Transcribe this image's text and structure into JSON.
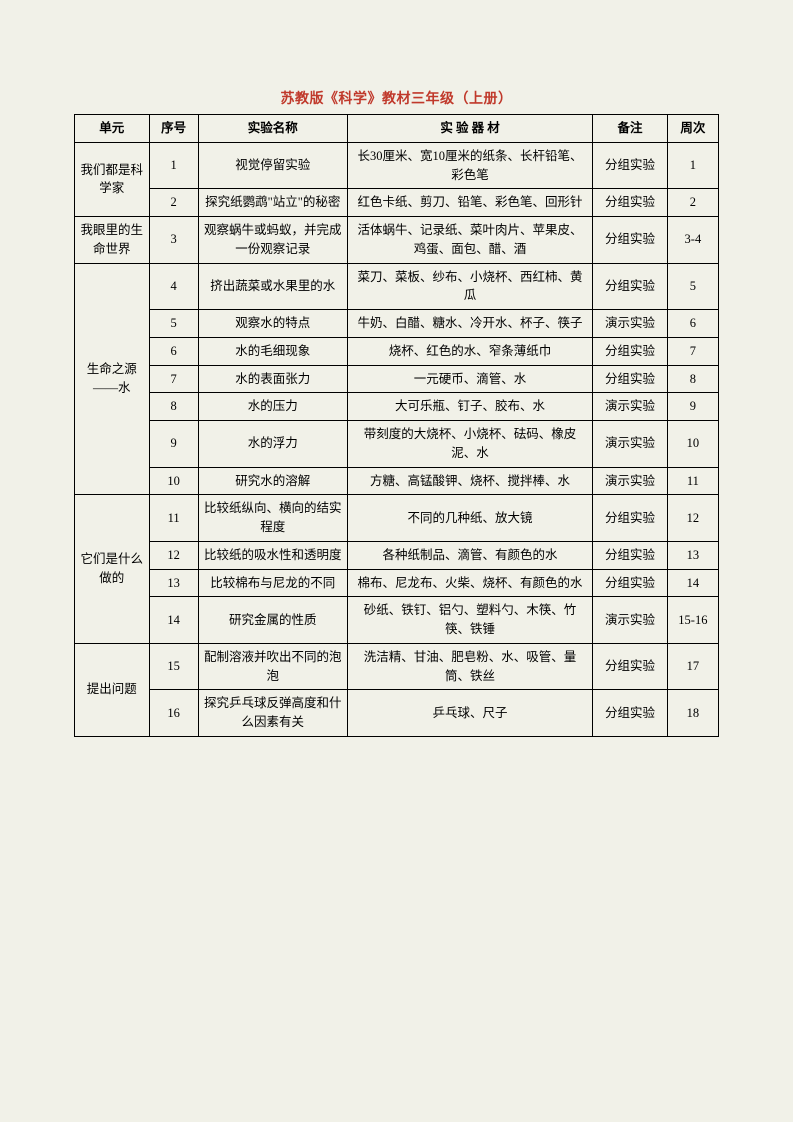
{
  "title": "苏教版《科学》教材三年级（上册）",
  "columns": [
    "单元",
    "序号",
    "实验名称",
    "实 验 器 材",
    "备注",
    "周次"
  ],
  "units": [
    {
      "name": "我们都是科学家",
      "rows": [
        {
          "num": "1",
          "exp": "视觉停留实验",
          "material": "长30厘米、宽10厘米的纸条、长杆铅笔、彩色笔",
          "remark": "分组实验",
          "week": "1"
        },
        {
          "num": "2",
          "exp": "探究纸鹦鹉\"站立\"的秘密",
          "material": "红色卡纸、剪刀、铅笔、彩色笔、回形针",
          "remark": "分组实验",
          "week": "2"
        }
      ]
    },
    {
      "name": "我眼里的生命世界",
      "rows": [
        {
          "num": "3",
          "exp": "观察蜗牛或蚂蚁，并完成一份观察记录",
          "material": "活体蜗牛、记录纸、菜叶肉片、苹果皮、鸡蛋、面包、醋、酒",
          "remark": "分组实验",
          "week": "3-4"
        }
      ]
    },
    {
      "name": "生命之源——水",
      "rows": [
        {
          "num": "4",
          "exp": "挤出蔬菜或水果里的水",
          "material": "菜刀、菜板、纱布、小烧杯、西红柿、黄瓜",
          "remark": "分组实验",
          "week": "5"
        },
        {
          "num": "5",
          "exp": "观察水的特点",
          "material": "牛奶、白醋、糖水、冷开水、杯子、筷子",
          "remark": "演示实验",
          "week": "6"
        },
        {
          "num": "6",
          "exp": "水的毛细现象",
          "material": "烧杯、红色的水、窄条薄纸巾",
          "remark": "分组实验",
          "week": "7"
        },
        {
          "num": "7",
          "exp": "水的表面张力",
          "material": "一元硬币、滴管、水",
          "remark": "分组实验",
          "week": "8"
        },
        {
          "num": "8",
          "exp": "水的压力",
          "material": "大可乐瓶、钉子、胶布、水",
          "remark": "演示实验",
          "week": "9"
        },
        {
          "num": "9",
          "exp": "水的浮力",
          "material": "带刻度的大烧杯、小烧杯、砝码、橡皮泥、水",
          "remark": "演示实验",
          "week": "10"
        },
        {
          "num": "10",
          "exp": "研究水的溶解",
          "material": "方糖、高锰酸钾、烧杯、搅拌棒、水",
          "remark": "演示实验",
          "week": "11"
        }
      ]
    },
    {
      "name": "它们是什么做的",
      "rows": [
        {
          "num": "11",
          "exp": "比较纸纵向、横向的结实程度",
          "material": "不同的几种纸、放大镜",
          "remark": "分组实验",
          "week": "12"
        },
        {
          "num": "12",
          "exp": "比较纸的吸水性和透明度",
          "material": "各种纸制品、滴管、有颜色的水",
          "remark": "分组实验",
          "week": "13"
        },
        {
          "num": "13",
          "exp": "比较棉布与尼龙的不同",
          "material": "棉布、尼龙布、火柴、烧杯、有颜色的水",
          "remark": "分组实验",
          "week": "14"
        },
        {
          "num": "14",
          "exp": "研究金属的性质",
          "material": "砂纸、铁钉、铝勺、塑料勺、木筷、竹筷、铁锤",
          "remark": "演示实验",
          "week": "15-16"
        }
      ]
    },
    {
      "name": "提出问题",
      "rows": [
        {
          "num": "15",
          "exp": "配制溶液并吹出不同的泡泡",
          "material": "洗洁精、甘油、肥皂粉、水、吸管、量筒、铁丝",
          "remark": "分组实验",
          "week": "17"
        },
        {
          "num": "16",
          "exp": "探究乒乓球反弹高度和什么因素有关",
          "material": "乒乓球、尺子",
          "remark": "分组实验",
          "week": "18"
        }
      ]
    }
  ]
}
